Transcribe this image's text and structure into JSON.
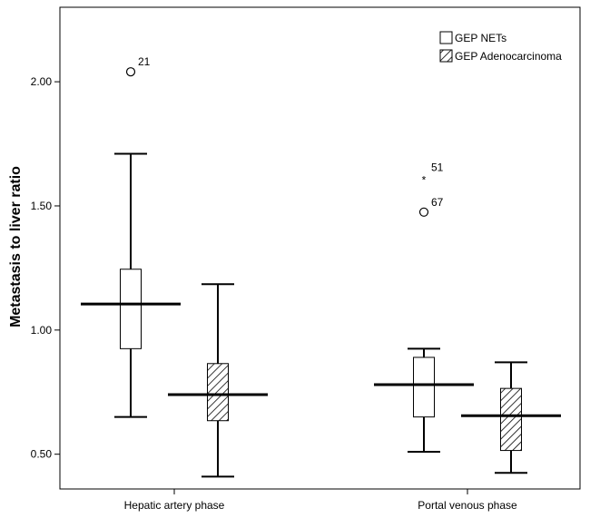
{
  "chart_data": {
    "type": "boxplot",
    "title": "",
    "xlabel": "",
    "ylabel": "Metastasis to liver ratio",
    "ylim": [
      0.36,
      2.3
    ],
    "yticks": [
      {
        "value": 0.5,
        "label": "0.50"
      },
      {
        "value": 1.0,
        "label": "1.00"
      },
      {
        "value": 1.5,
        "label": "1.50"
      },
      {
        "value": 2.0,
        "label": "2.00"
      }
    ],
    "categories": [
      "Hepatic artery phase",
      "Portal venous phase"
    ],
    "legend_position": "top-right",
    "series": [
      {
        "name": "GEP NETs",
        "pattern": "none",
        "boxes": [
          {
            "min": 0.65,
            "q1": 0.925,
            "median": 1.105,
            "q3": 1.245,
            "max": 1.71
          },
          {
            "min": 0.51,
            "q1": 0.65,
            "median": 0.78,
            "q3": 0.89,
            "max": 0.925
          }
        ]
      },
      {
        "name": "GEP Adenocarcinoma",
        "pattern": "hatched",
        "boxes": [
          {
            "min": 0.41,
            "q1": 0.635,
            "median": 0.74,
            "q3": 0.865,
            "max": 1.185
          },
          {
            "min": 0.425,
            "q1": 0.515,
            "median": 0.655,
            "q3": 0.765,
            "max": 0.87
          }
        ]
      }
    ],
    "outliers": [
      {
        "category": 0,
        "series": 0,
        "value": 2.04,
        "marker": "circle",
        "label": "21"
      },
      {
        "category": 1,
        "series": 0,
        "value": 1.615,
        "marker": "star",
        "label": "51"
      },
      {
        "category": 1,
        "series": 0,
        "value": 1.475,
        "marker": "circle",
        "label": "67"
      }
    ]
  }
}
